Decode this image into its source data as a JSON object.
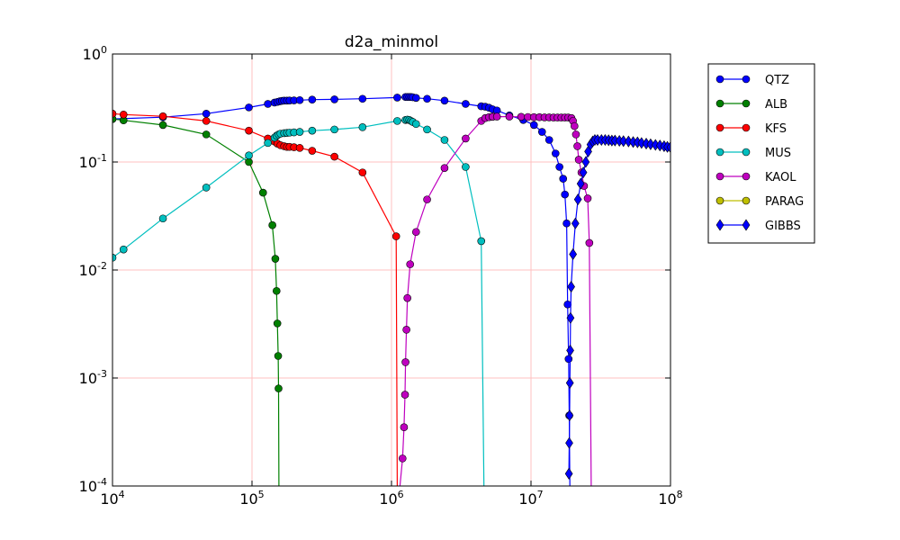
{
  "chart_data": {
    "type": "line",
    "title": "d2a_minmol",
    "xlabel": "",
    "ylabel": "",
    "xscale": "log",
    "yscale": "log",
    "xlim": [
      10000,
      100000000
    ],
    "ylim": [
      0.0001,
      1
    ],
    "grid": true,
    "grid_color": "#ffc0c0",
    "legend_placement": "outside-right-top",
    "x_ticks": [
      {
        "base": "10",
        "exp": "4",
        "value": 10000
      },
      {
        "base": "10",
        "exp": "5",
        "value": 100000
      },
      {
        "base": "10",
        "exp": "6",
        "value": 1000000
      },
      {
        "base": "10",
        "exp": "7",
        "value": 10000000
      },
      {
        "base": "10",
        "exp": "8",
        "value": 100000000
      }
    ],
    "y_ticks": [
      {
        "base": "10",
        "exp": "-4",
        "value": 0.0001
      },
      {
        "base": "10",
        "exp": "-3",
        "value": 0.001
      },
      {
        "base": "10",
        "exp": "-2",
        "value": 0.01
      },
      {
        "base": "10",
        "exp": "-1",
        "value": 0.1
      },
      {
        "base": "10",
        "exp": "0",
        "value": 1
      }
    ],
    "series": [
      {
        "name": "QTZ",
        "color": "#0000ff",
        "marker": "circle",
        "points": [
          [
            10000,
            0.25
          ],
          [
            23000,
            0.26
          ],
          [
            47000,
            0.28
          ],
          [
            95000,
            0.32
          ],
          [
            130000,
            0.345
          ],
          [
            145000,
            0.355
          ],
          [
            152000,
            0.36
          ],
          [
            158000,
            0.365
          ],
          [
            164000,
            0.368
          ],
          [
            170000,
            0.37
          ],
          [
            178000,
            0.37
          ],
          [
            186000,
            0.371
          ],
          [
            200000,
            0.372
          ],
          [
            220000,
            0.374
          ],
          [
            270000,
            0.378
          ],
          [
            390000,
            0.38
          ],
          [
            620000,
            0.385
          ],
          [
            1100000,
            0.395
          ],
          [
            1260000,
            0.4
          ],
          [
            1300000,
            0.4
          ],
          [
            1340000,
            0.4
          ],
          [
            1380000,
            0.4
          ],
          [
            1420000,
            0.398
          ],
          [
            1500000,
            0.392
          ],
          [
            1800000,
            0.385
          ],
          [
            2400000,
            0.37
          ],
          [
            3400000,
            0.345
          ],
          [
            4400000,
            0.328
          ],
          [
            4700000,
            0.325
          ],
          [
            5000000,
            0.318
          ],
          [
            5300000,
            0.308
          ],
          [
            5700000,
            0.3
          ],
          [
            7000000,
            0.27
          ],
          [
            8800000,
            0.245
          ],
          [
            10500000,
            0.22
          ],
          [
            12000000,
            0.19
          ],
          [
            13500000,
            0.16
          ],
          [
            15000000,
            0.12
          ],
          [
            16000000,
            0.09
          ],
          [
            17000000,
            0.07
          ],
          [
            17500000,
            0.05
          ],
          [
            18000000,
            0.027
          ],
          [
            18300000,
            0.0048
          ],
          [
            18600000,
            0.0015
          ],
          [
            18800000,
            0.00045
          ],
          [
            19000000,
            0.0001
          ]
        ]
      },
      {
        "name": "ALB",
        "color": "#008000",
        "marker": "circle",
        "points": [
          [
            10000,
            0.25
          ],
          [
            12000,
            0.243
          ],
          [
            23000,
            0.22
          ],
          [
            47000,
            0.18
          ],
          [
            95000,
            0.1
          ],
          [
            120000,
            0.052
          ],
          [
            140000,
            0.026
          ],
          [
            147000,
            0.0127
          ],
          [
            150000,
            0.0064
          ],
          [
            152000,
            0.0032
          ],
          [
            154000,
            0.0016
          ],
          [
            155000,
            0.0008
          ],
          [
            156000,
            0.0001
          ]
        ]
      },
      {
        "name": "KFS",
        "color": "#ff0000",
        "marker": "circle",
        "points": [
          [
            10000,
            0.28
          ],
          [
            12000,
            0.275
          ],
          [
            23000,
            0.265
          ],
          [
            47000,
            0.24
          ],
          [
            95000,
            0.195
          ],
          [
            130000,
            0.165
          ],
          [
            145000,
            0.155
          ],
          [
            152000,
            0.148
          ],
          [
            160000,
            0.143
          ],
          [
            170000,
            0.14
          ],
          [
            178000,
            0.138
          ],
          [
            186000,
            0.138
          ],
          [
            200000,
            0.137
          ],
          [
            220000,
            0.135
          ],
          [
            270000,
            0.127
          ],
          [
            390000,
            0.112
          ],
          [
            620000,
            0.08
          ],
          [
            1080000,
            0.0205
          ],
          [
            1100000,
            0.0001
          ]
        ]
      },
      {
        "name": "MUS",
        "color": "#00bfbf",
        "marker": "circle",
        "points": [
          [
            10000,
            0.013
          ],
          [
            12000,
            0.0155
          ],
          [
            23000,
            0.03
          ],
          [
            47000,
            0.058
          ],
          [
            95000,
            0.115
          ],
          [
            130000,
            0.15
          ],
          [
            145000,
            0.168
          ],
          [
            150000,
            0.175
          ],
          [
            155000,
            0.18
          ],
          [
            160000,
            0.183
          ],
          [
            170000,
            0.185
          ],
          [
            178000,
            0.186
          ],
          [
            186000,
            0.187
          ],
          [
            200000,
            0.188
          ],
          [
            220000,
            0.19
          ],
          [
            270000,
            0.195
          ],
          [
            390000,
            0.2
          ],
          [
            620000,
            0.21
          ],
          [
            1100000,
            0.24
          ],
          [
            1260000,
            0.245
          ],
          [
            1300000,
            0.247
          ],
          [
            1340000,
            0.245
          ],
          [
            1380000,
            0.24
          ],
          [
            1420000,
            0.235
          ],
          [
            1500000,
            0.225
          ],
          [
            1800000,
            0.2
          ],
          [
            2400000,
            0.16
          ],
          [
            3400000,
            0.09
          ],
          [
            4400000,
            0.0185
          ],
          [
            4600000,
            0.0001
          ]
        ]
      },
      {
        "name": "KAOL",
        "color": "#bf00bf",
        "marker": "circle",
        "points": [
          [
            1150000,
            0.0001
          ],
          [
            1200000,
            0.00018
          ],
          [
            1230000,
            0.00035
          ],
          [
            1250000,
            0.0007
          ],
          [
            1260000,
            0.0014
          ],
          [
            1280000,
            0.0028
          ],
          [
            1300000,
            0.0055
          ],
          [
            1360000,
            0.0113
          ],
          [
            1500000,
            0.0225
          ],
          [
            1800000,
            0.045
          ],
          [
            2400000,
            0.088
          ],
          [
            3400000,
            0.165
          ],
          [
            4400000,
            0.24
          ],
          [
            4700000,
            0.255
          ],
          [
            5000000,
            0.26
          ],
          [
            5300000,
            0.262
          ],
          [
            5700000,
            0.263
          ],
          [
            7000000,
            0.263
          ],
          [
            8500000,
            0.262
          ],
          [
            9500000,
            0.261
          ],
          [
            10500000,
            0.26
          ],
          [
            11500000,
            0.26
          ],
          [
            12500000,
            0.259
          ],
          [
            13500000,
            0.259
          ],
          [
            14500000,
            0.258
          ],
          [
            15500000,
            0.258
          ],
          [
            16500000,
            0.258
          ],
          [
            17500000,
            0.258
          ],
          [
            18500000,
            0.258
          ],
          [
            19500000,
            0.255
          ],
          [
            20000000,
            0.24
          ],
          [
            20500000,
            0.215
          ],
          [
            21000000,
            0.18
          ],
          [
            21500000,
            0.14
          ],
          [
            22000000,
            0.105
          ],
          [
            23000000,
            0.08
          ],
          [
            24000000,
            0.06
          ],
          [
            25500000,
            0.046
          ],
          [
            26200000,
            0.0178
          ],
          [
            27000000,
            0.0001
          ]
        ]
      },
      {
        "name": "PARAG",
        "color": "#bfbf00",
        "marker": "circle",
        "points": []
      },
      {
        "name": "GIBBS",
        "color": "#0000ff",
        "marker": "diamond",
        "points": [
          [
            18700000,
            0.00013
          ],
          [
            18800000,
            0.00025
          ],
          [
            18900000,
            0.00045
          ],
          [
            19000000,
            0.0009
          ],
          [
            19100000,
            0.0018
          ],
          [
            19200000,
            0.0036
          ],
          [
            19400000,
            0.007
          ],
          [
            20000000,
            0.014
          ],
          [
            20800000,
            0.027
          ],
          [
            21700000,
            0.045
          ],
          [
            22700000,
            0.063
          ],
          [
            23700000,
            0.08
          ],
          [
            24700000,
            0.1
          ],
          [
            25700000,
            0.125
          ],
          [
            26700000,
            0.145
          ],
          [
            27700000,
            0.155
          ],
          [
            28700000,
            0.16
          ],
          [
            30000000,
            0.16
          ],
          [
            32000000,
            0.16
          ],
          [
            34000000,
            0.16
          ],
          [
            36000000,
            0.159
          ],
          [
            38000000,
            0.158
          ],
          [
            40000000,
            0.158
          ],
          [
            43000000,
            0.157
          ],
          [
            46000000,
            0.156
          ],
          [
            50000000,
            0.155
          ],
          [
            54000000,
            0.153
          ],
          [
            58000000,
            0.152
          ],
          [
            62000000,
            0.15
          ],
          [
            67000000,
            0.148
          ],
          [
            72000000,
            0.146
          ],
          [
            78000000,
            0.144
          ],
          [
            84000000,
            0.142
          ],
          [
            90000000,
            0.14
          ],
          [
            95000000,
            0.138
          ],
          [
            100000000,
            0.137
          ]
        ]
      }
    ]
  }
}
